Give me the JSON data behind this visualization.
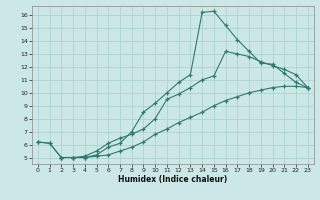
{
  "xlabel": "Humidex (Indice chaleur)",
  "background_color": "#cce8e6",
  "grid_color": "#aacfcc",
  "line_color": "#2d7a6e",
  "xlim": [
    -0.5,
    23.5
  ],
  "ylim": [
    4.5,
    16.7
  ],
  "xticks": [
    0,
    1,
    2,
    3,
    4,
    5,
    6,
    7,
    8,
    9,
    10,
    11,
    12,
    13,
    14,
    15,
    16,
    17,
    18,
    19,
    20,
    21,
    22,
    23
  ],
  "yticks": [
    5,
    6,
    7,
    8,
    9,
    10,
    11,
    12,
    13,
    14,
    15,
    16
  ],
  "line1_x": [
    0,
    1,
    2,
    3,
    4,
    5,
    6,
    7,
    8,
    9,
    10,
    11,
    12,
    13,
    14,
    15,
    16,
    17,
    18,
    19,
    20,
    21,
    22,
    23
  ],
  "line1_y": [
    6.2,
    6.1,
    5.0,
    5.0,
    5.0,
    5.1,
    5.2,
    5.5,
    5.8,
    6.2,
    6.8,
    7.2,
    7.7,
    8.1,
    8.5,
    9.0,
    9.4,
    9.7,
    10.0,
    10.2,
    10.4,
    10.5,
    10.5,
    10.4
  ],
  "line2_x": [
    0,
    1,
    2,
    3,
    4,
    5,
    6,
    7,
    8,
    9,
    10,
    11,
    12,
    13,
    14,
    15,
    16,
    17,
    18,
    19,
    20,
    21,
    22,
    23
  ],
  "line2_y": [
    6.2,
    6.1,
    5.0,
    5.0,
    5.0,
    5.2,
    5.8,
    6.1,
    7.0,
    8.5,
    9.2,
    10.0,
    10.8,
    11.4,
    16.2,
    16.3,
    15.2,
    14.1,
    13.2,
    12.3,
    12.2,
    11.5,
    10.8,
    10.4
  ],
  "line3_x": [
    2,
    3,
    4,
    5,
    6,
    7,
    8,
    9,
    10,
    11,
    12,
    13,
    14,
    15,
    16,
    17,
    18,
    19,
    20,
    21,
    22,
    23
  ],
  "line3_y": [
    5.0,
    5.0,
    5.1,
    5.5,
    6.1,
    6.5,
    6.8,
    7.2,
    8.0,
    9.5,
    9.9,
    10.4,
    11.0,
    11.3,
    13.2,
    13.0,
    12.8,
    12.4,
    12.1,
    11.8,
    11.4,
    10.4
  ]
}
